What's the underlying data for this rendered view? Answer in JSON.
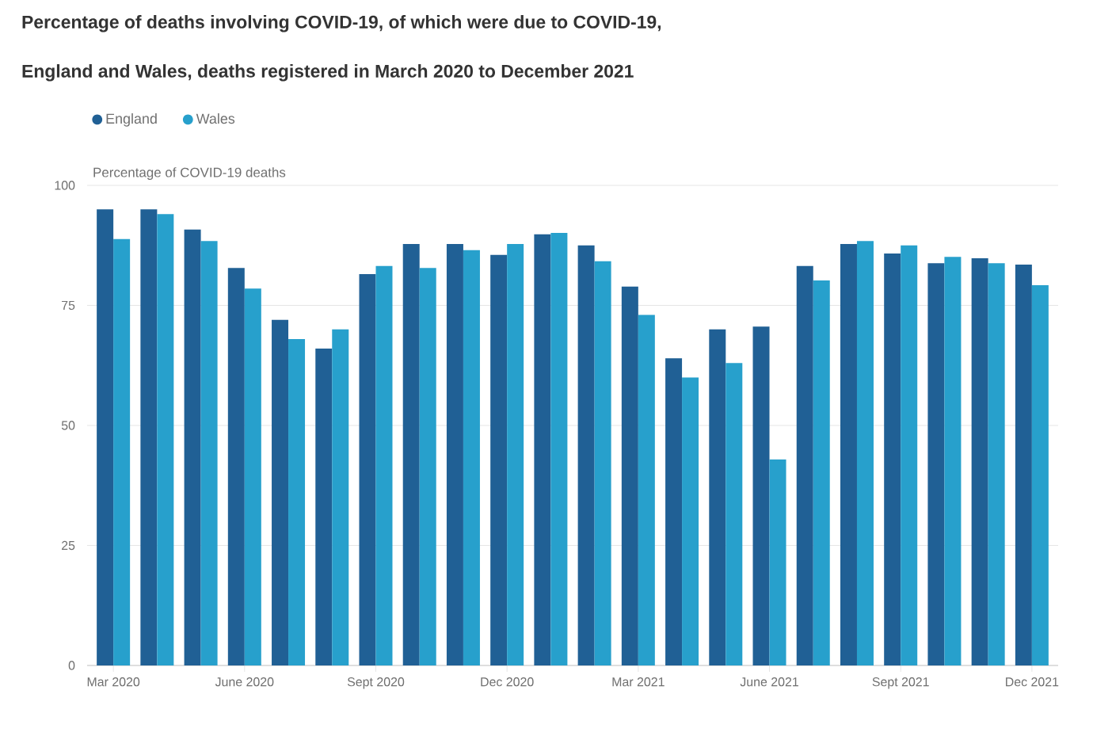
{
  "chart_data": {
    "type": "bar",
    "title": "Percentage of deaths involving COVID-19, of which were due to COVID-19,",
    "subtitle": "England and Wales, deaths registered in March 2020 to December 2021",
    "ylabel": "Percentage of COVID-19 deaths",
    "categories": [
      "Mar 2020",
      null,
      null,
      "June 2020",
      null,
      null,
      "Sept 2020",
      null,
      null,
      "Dec 2020",
      null,
      null,
      "Mar 2021",
      null,
      null,
      "June 2021",
      null,
      null,
      "Sept 2021",
      null,
      null,
      "Dec 2021"
    ],
    "series": [
      {
        "name": "England",
        "color": "#206095",
        "values": [
          95,
          95,
          90.8,
          82.8,
          72,
          66,
          81.5,
          87.8,
          87.8,
          85.5,
          89.8,
          87.5,
          78.9,
          64,
          70,
          70.6,
          83.2,
          87.8,
          85.8,
          83.8,
          84.8,
          83.5
        ]
      },
      {
        "name": "Wales",
        "color": "#27a0cc",
        "values": [
          88.8,
          94,
          88.4,
          78.5,
          68,
          70,
          83.2,
          82.8,
          86.5,
          87.8,
          90.1,
          84.2,
          73,
          60,
          63,
          42.9,
          80.2,
          88.4,
          87.5,
          85.1,
          83.8,
          79.2
        ]
      }
    ],
    "ylim": [
      0,
      100
    ],
    "yticks": [
      0,
      25,
      50,
      75,
      100
    ],
    "grid": "y",
    "legend": "top left"
  }
}
